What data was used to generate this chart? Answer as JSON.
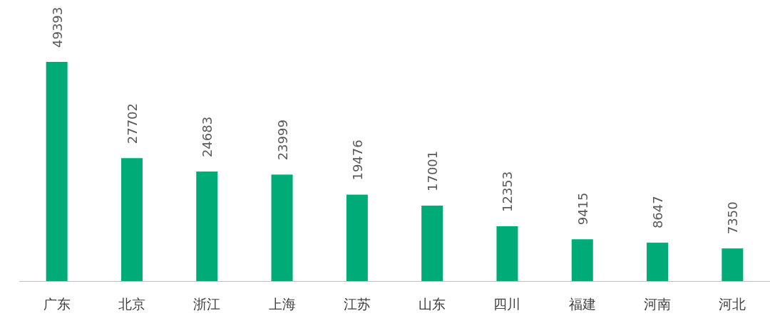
{
  "chart_data": {
    "type": "bar",
    "categories": [
      "广东",
      "北京",
      "浙江",
      "上海",
      "江苏",
      "山东",
      "四川",
      "福建",
      "河南",
      "河北"
    ],
    "values": [
      49393,
      27702,
      24683,
      23999,
      19476,
      17001,
      12353,
      9415,
      8647,
      7350
    ],
    "color": "#00ab78",
    "data_labels": true
  }
}
